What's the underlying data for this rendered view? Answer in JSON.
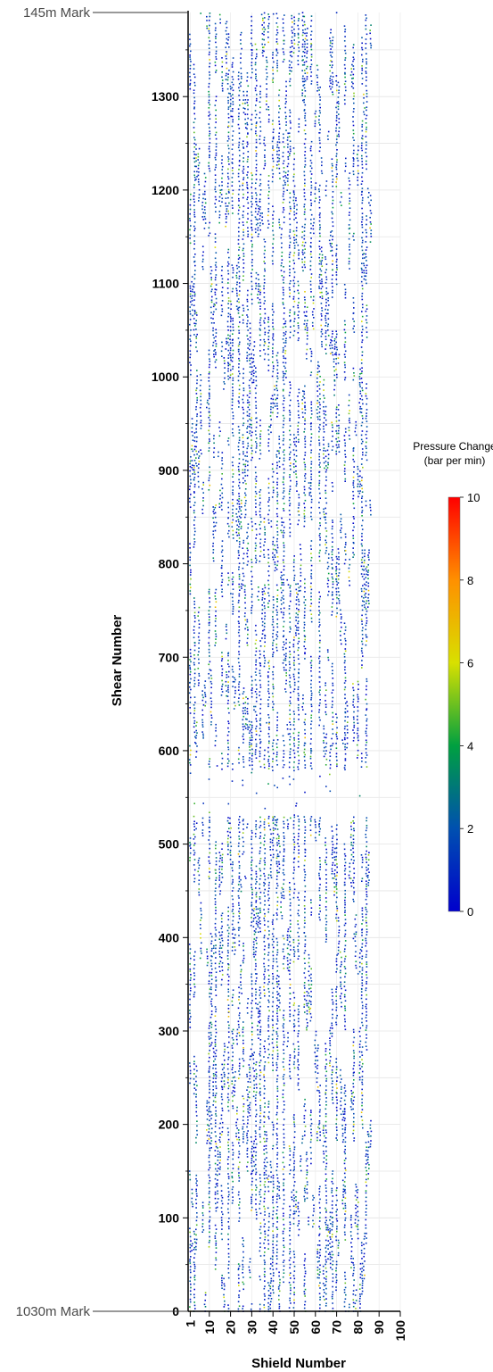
{
  "chart_data": {
    "type": "heatmap",
    "title": "",
    "xlabel": "Shield Number",
    "ylabel": "Shear Number",
    "xlim": [
      0,
      100
    ],
    "ylim": [
      0,
      1390
    ],
    "x_ticks": [
      "1",
      "10",
      "20",
      "30",
      "40",
      "50",
      "60",
      "70",
      "80",
      "90",
      "100"
    ],
    "x_tick_values": [
      1,
      10,
      20,
      30,
      40,
      50,
      60,
      70,
      80,
      90,
      100
    ],
    "y_ticks": [
      "0",
      "100",
      "200",
      "300",
      "400",
      "500",
      "600",
      "700",
      "800",
      "900",
      "1000",
      "1100",
      "1200",
      "1300"
    ],
    "y_tick_values": [
      0,
      100,
      200,
      300,
      400,
      500,
      600,
      700,
      800,
      900,
      1000,
      1100,
      1200,
      1300
    ],
    "grid": true,
    "annotations": [
      {
        "text": "145m Mark",
        "y": 1390
      },
      {
        "text": "1030m Mark",
        "y": 0
      }
    ],
    "colorbar": {
      "title_line1": "Pressure Change",
      "title_line2": "(bar per min)",
      "min": 0,
      "max": 10,
      "ticks": [
        "0",
        "2",
        "4",
        "6",
        "8",
        "10"
      ],
      "tick_values": [
        0,
        2,
        4,
        6,
        8,
        10
      ],
      "colors": [
        "#0000cc",
        "#0050b0",
        "#00a040",
        "#d8e000",
        "#ff9000",
        "#ff0000"
      ],
      "placement": "right"
    },
    "dense_columns": [
      1,
      3,
      10,
      13,
      16,
      19,
      21,
      24,
      26,
      28,
      30,
      32,
      34,
      36,
      38,
      40,
      42,
      45,
      48,
      50,
      52,
      55,
      58,
      62,
      65,
      68,
      70,
      74,
      78,
      82,
      84
    ],
    "gap_shear_range": [
      530,
      580
    ],
    "typical_value_range": [
      0,
      6
    ]
  }
}
